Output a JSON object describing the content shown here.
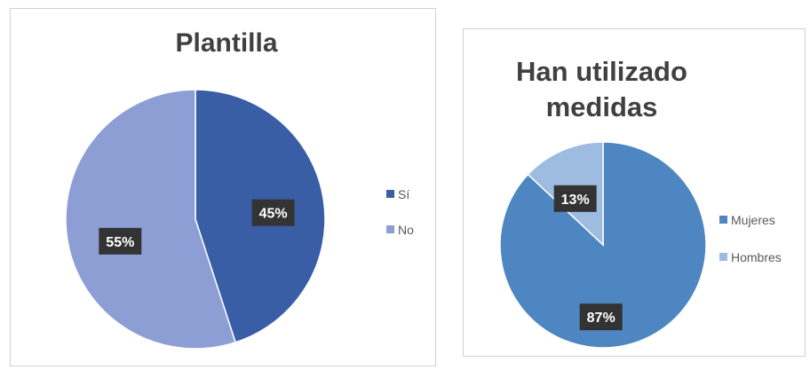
{
  "chart_data": [
    {
      "type": "pie",
      "title": "Plantilla",
      "categories": [
        "Sí",
        "No"
      ],
      "values": [
        45,
        55
      ],
      "data_labels": [
        "45%",
        "55%"
      ],
      "colors": [
        "#3a5ea6",
        "#8d9ed4"
      ],
      "legend_position": "right"
    },
    {
      "type": "pie",
      "title": "Han utilizado\nmedidas",
      "categories": [
        "Mujeres",
        "Hombres"
      ],
      "values": [
        87,
        13
      ],
      "data_labels": [
        "87%",
        "13%"
      ],
      "colors": [
        "#4d86c0",
        "#9dbce0"
      ],
      "legend_position": "right"
    }
  ],
  "style": {
    "label_background": "#333333",
    "label_text": "#ffffff",
    "legend_text": "#595959",
    "slice_border": "#ffffff"
  }
}
